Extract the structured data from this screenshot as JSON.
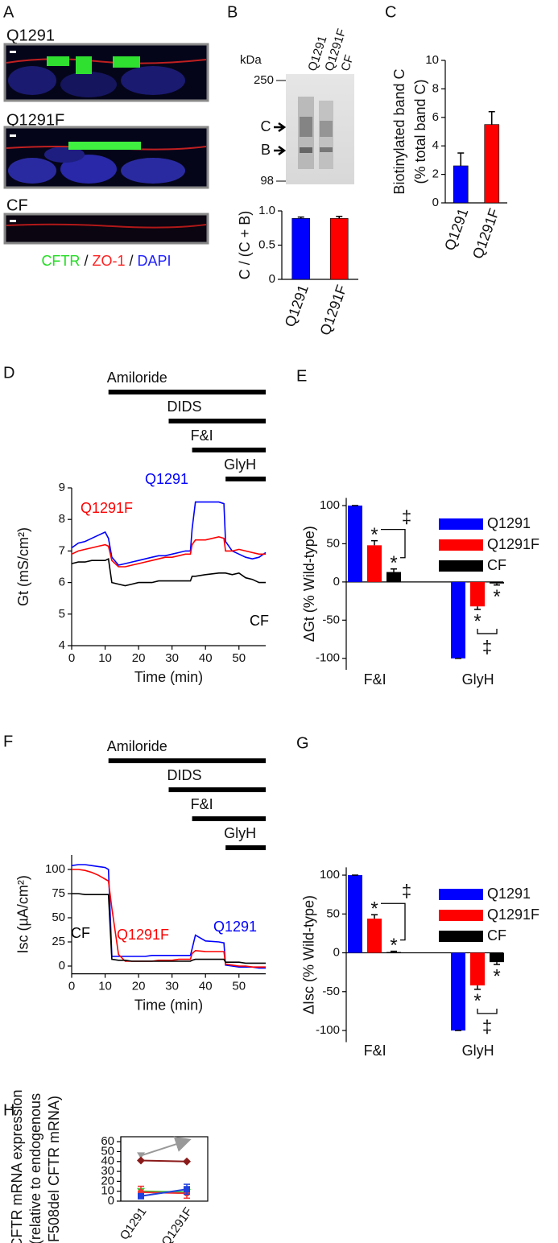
{
  "figure": {
    "panel_labels": [
      "A",
      "B",
      "C",
      "D",
      "E",
      "F",
      "G",
      "H"
    ],
    "micrographs": [
      "Q1291",
      "Q1291F",
      "CF"
    ],
    "stain_legend": {
      "separator": "/",
      "items": [
        {
          "text": "CFTR",
          "color": "#22dd22"
        },
        {
          "text": "ZO-1",
          "color": "#ff2020"
        },
        {
          "text": "DAPI",
          "color": "#2020ff"
        }
      ]
    },
    "blot": {
      "unit": "kDa",
      "lanes": [
        "Q1291",
        "Q1291F",
        "CF"
      ],
      "markers": [
        250,
        98
      ],
      "bands": [
        "C",
        "B"
      ]
    }
  },
  "chart_data": [
    {
      "type": "bar",
      "ylabel": "C / (C + B)",
      "categories": [
        "Q1291",
        "Q1291F"
      ],
      "values": [
        0.89,
        0.89
      ],
      "errors": [
        0.02,
        0.03
      ],
      "colors": [
        "#0000ff",
        "#ff0000"
      ],
      "ylim": [
        0,
        1
      ],
      "yticks": [
        0,
        0.5,
        {
          "value": 1,
          "label": "1.0"
        }
      ]
    },
    {
      "type": "bar",
      "ylabel": [
        "Biotinylated band C",
        "(% total band C)"
      ],
      "categories": [
        "Q1291",
        "Q1291F"
      ],
      "values": [
        2.6,
        5.5
      ],
      "errors": [
        0.9,
        0.9
      ],
      "colors": [
        "#0000ff",
        "#ff0000"
      ],
      "ylim": [
        0,
        10
      ],
      "yticks": [
        0,
        2,
        4,
        6,
        8,
        10
      ]
    },
    {
      "type": "line",
      "ylabel": "Gt (mS/cm²)",
      "xlabel": "Time (min)",
      "x": [
        0,
        2,
        4,
        6,
        8,
        10,
        11,
        12,
        14,
        16,
        18,
        20,
        22,
        24,
        26,
        28,
        30,
        32,
        34,
        35.5,
        36,
        37,
        40,
        44,
        45.5,
        46,
        48,
        50,
        52,
        54,
        56,
        58
      ],
      "xlim": [
        0,
        58
      ],
      "xticks": [
        0,
        10,
        20,
        30,
        40,
        50
      ],
      "ylim": [
        4,
        9
      ],
      "yticks": [
        4,
        5,
        6,
        7,
        8,
        9
      ],
      "treatments": [
        {
          "label": "Amiloride",
          "start": 11,
          "end": 58
        },
        {
          "label": "DIDS",
          "start": 29,
          "end": 58
        },
        {
          "label": "F&I",
          "start": 36,
          "end": 58
        },
        {
          "label": "GlyH",
          "start": 46,
          "end": 58
        }
      ],
      "series": [
        {
          "name": "Q1291",
          "color": "#0000ff",
          "values": [
            7.1,
            7.25,
            7.3,
            7.4,
            7.5,
            7.6,
            7.4,
            6.8,
            6.55,
            6.6,
            6.65,
            6.7,
            6.75,
            6.8,
            6.85,
            6.85,
            6.9,
            6.95,
            7.0,
            7.0,
            7.7,
            8.55,
            8.55,
            8.55,
            8.5,
            7.3,
            7.0,
            6.9,
            6.8,
            6.75,
            6.8,
            6.95
          ]
        },
        {
          "name": "Q1291F",
          "color": "#ff0000",
          "values": [
            6.9,
            7.0,
            7.05,
            7.1,
            7.15,
            7.2,
            7.15,
            6.7,
            6.5,
            6.5,
            6.55,
            6.6,
            6.65,
            6.7,
            6.75,
            6.8,
            6.8,
            6.85,
            6.9,
            6.9,
            7.2,
            7.35,
            7.35,
            7.45,
            7.4,
            7.0,
            7.0,
            7.05,
            7.0,
            6.95,
            6.9,
            6.9
          ]
        },
        {
          "name": "CF",
          "color": "#000000",
          "values": [
            6.6,
            6.65,
            6.65,
            6.7,
            6.7,
            6.7,
            6.75,
            6.0,
            5.95,
            5.9,
            5.95,
            6.0,
            6.0,
            6.0,
            6.05,
            6.05,
            6.05,
            6.05,
            6.05,
            6.05,
            6.2,
            6.2,
            6.25,
            6.3,
            6.3,
            6.3,
            6.25,
            6.3,
            6.15,
            6.1,
            6.0,
            6.0
          ]
        }
      ]
    },
    {
      "type": "bar",
      "ylabel": "ΔGt (% Wild-type)",
      "categories": [
        "F&I",
        "GlyH"
      ],
      "ylim": [
        -115,
        110
      ],
      "yticks": [
        -100,
        -50,
        0,
        50,
        100
      ],
      "series": [
        {
          "name": "Q1291",
          "color": "#0000ff",
          "values": [
            100,
            -100
          ],
          "errors": [
            0,
            0
          ],
          "marks": [
            null,
            null
          ]
        },
        {
          "name": "Q1291F",
          "color": "#ff0000",
          "values": [
            48,
            -32
          ],
          "errors": [
            6,
            4
          ],
          "marks": [
            "*",
            "*"
          ]
        },
        {
          "name": "CF",
          "color": "#000000",
          "values": [
            13,
            -2
          ],
          "errors": [
            4,
            2
          ],
          "marks": [
            "*",
            "*"
          ]
        }
      ],
      "bracket_labels": [
        "‡",
        "‡"
      ]
    },
    {
      "type": "line",
      "ylabel": "Isc (µA/cm²)",
      "xlabel": "Time (min)",
      "x": [
        0,
        2,
        4,
        6,
        8,
        10,
        11,
        12,
        14,
        16,
        18,
        20,
        22,
        24,
        26,
        28,
        30,
        32,
        34,
        35.5,
        36,
        37,
        40,
        44,
        45.5,
        46,
        48,
        50,
        52,
        54,
        56,
        58
      ],
      "xlim": [
        0,
        58
      ],
      "xticks": [
        0,
        10,
        20,
        30,
        40,
        50
      ],
      "ylim": [
        -8,
        115
      ],
      "yticks": [
        0,
        25,
        50,
        75,
        100
      ],
      "treatments": [
        {
          "label": "Amiloride",
          "start": 11,
          "end": 58
        },
        {
          "label": "DIDS",
          "start": 29,
          "end": 58
        },
        {
          "label": "F&I",
          "start": 36,
          "end": 58
        },
        {
          "label": "GlyH",
          "start": 46,
          "end": 58
        }
      ],
      "series": [
        {
          "name": "Q1291",
          "color": "#0000ff",
          "values": [
            104,
            105,
            105,
            104,
            103,
            102,
            100,
            10,
            10,
            10,
            10,
            10,
            10,
            11,
            11,
            11,
            11,
            11,
            11,
            11,
            18,
            32,
            26,
            25,
            24,
            1,
            0,
            -1,
            -1,
            -1,
            -2,
            -2
          ]
        },
        {
          "name": "Q1291F",
          "color": "#ff0000",
          "values": [
            100,
            100,
            99,
            97,
            94,
            90,
            88,
            60,
            12,
            5,
            5,
            5,
            5,
            5,
            6,
            6,
            6,
            7,
            7,
            7,
            13,
            16,
            15,
            15,
            15,
            2,
            1,
            0,
            0,
            -1,
            -1,
            -1
          ]
        },
        {
          "name": "CF",
          "color": "#000000",
          "values": [
            75,
            75,
            74,
            74,
            74,
            74,
            74,
            7,
            6,
            6,
            5,
            5,
            5,
            5,
            5,
            5,
            5,
            5,
            5,
            5,
            6,
            7,
            7,
            7,
            7,
            4,
            4,
            4,
            3,
            3,
            3,
            3
          ]
        }
      ]
    },
    {
      "type": "bar",
      "ylabel": "ΔIsc (% Wild-type)",
      "categories": [
        "F&I",
        "GlyH"
      ],
      "ylim": [
        -115,
        110
      ],
      "yticks": [
        -100,
        -50,
        0,
        50,
        100
      ],
      "series": [
        {
          "name": "Q1291",
          "color": "#0000ff",
          "values": [
            100,
            -100
          ],
          "errors": [
            0,
            0
          ],
          "marks": [
            null,
            null
          ]
        },
        {
          "name": "Q1291F",
          "color": "#ff0000",
          "values": [
            44,
            -42
          ],
          "errors": [
            5,
            5
          ],
          "marks": [
            "*",
            "*"
          ]
        },
        {
          "name": "CF",
          "color": "#000000",
          "values": [
            1,
            -12
          ],
          "errors": [
            1,
            3
          ],
          "marks": [
            "*",
            "*"
          ]
        }
      ],
      "bracket_labels": [
        "‡",
        "‡"
      ]
    },
    {
      "type": "line",
      "ylabel": [
        "CFTR mRNA expression",
        "(relative to endogenous",
        "F508del CFTR mRNA)"
      ],
      "categories": [
        "Q1291",
        "Q1291F"
      ],
      "ylim": [
        0,
        65
      ],
      "yticks": [
        0,
        10,
        20,
        30,
        40,
        50,
        60
      ],
      "series": [
        {
          "color": "#999999",
          "marker": "arrow",
          "values": [
            46,
            61
          ]
        },
        {
          "color": "#8b1a1a",
          "marker": "diamond",
          "values": [
            41,
            40
          ]
        },
        {
          "color": "#e8c020",
          "marker": "circle",
          "values": [
            9,
            9
          ]
        },
        {
          "color": "#33cc33",
          "marker": "triangle",
          "values": [
            10,
            9
          ]
        },
        {
          "color": "#ee3333",
          "marker": "circle",
          "values": [
            9,
            8
          ],
          "errors": [
            6,
            5
          ]
        },
        {
          "color": "#2040dd",
          "marker": "square",
          "values": [
            5,
            12
          ],
          "errors": [
            1,
            5
          ]
        }
      ]
    }
  ]
}
